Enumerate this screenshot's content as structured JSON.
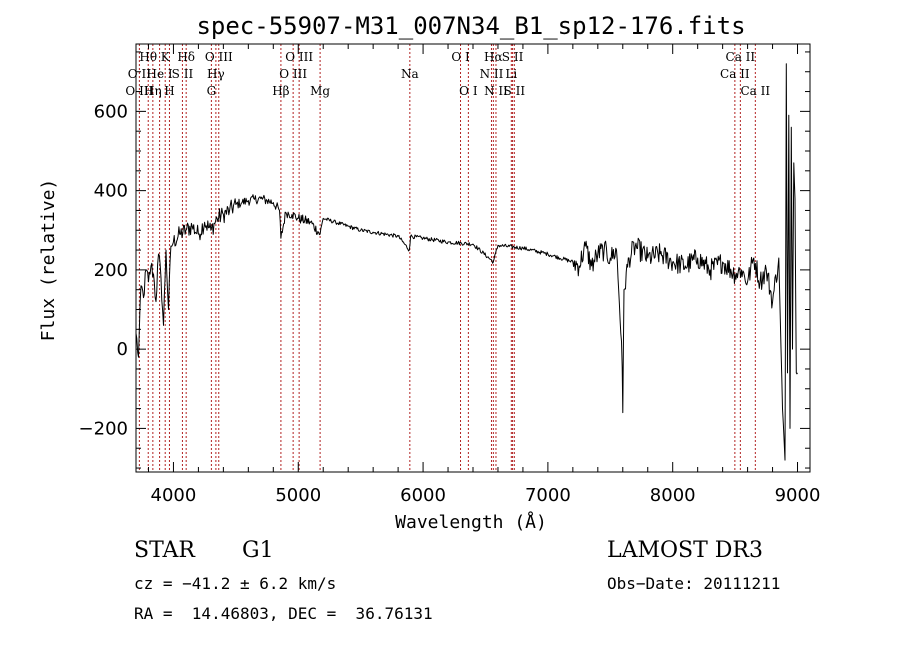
{
  "chart_data": {
    "type": "line",
    "title": "spec-55907-M31_007N34_B1_sp12-176.fits",
    "xlabel": "Wavelength (Å)",
    "ylabel": "Flux (relative)",
    "xlim": [
      3700,
      9100
    ],
    "ylim": [
      -310,
      770
    ],
    "xticks": [
      4000,
      5000,
      6000,
      7000,
      8000,
      9000
    ],
    "yticks": [
      -200,
      0,
      200,
      400,
      600
    ],
    "series": [
      {
        "name": "spectrum",
        "x": [
          3700,
          3720,
          3740,
          3760,
          3780,
          3800,
          3820,
          3840,
          3860,
          3880,
          3900,
          3920,
          3940,
          3960,
          3980,
          4000,
          4050,
          4100,
          4150,
          4200,
          4250,
          4300,
          4350,
          4400,
          4450,
          4500,
          4550,
          4600,
          4650,
          4700,
          4750,
          4800,
          4850,
          4861,
          4900,
          4950,
          5000,
          5100,
          5175,
          5200,
          5300,
          5400,
          5500,
          5600,
          5700,
          5800,
          5890,
          5900,
          6000,
          6200,
          6400,
          6563,
          6600,
          6800,
          7000,
          7200,
          7250,
          7300,
          7350,
          7400,
          7450,
          7500,
          7550,
          7590,
          7600,
          7610,
          7650,
          7700,
          7800,
          7900,
          8000,
          8100,
          8200,
          8300,
          8400,
          8500,
          8550,
          8600,
          8650,
          8700,
          8750,
          8800,
          8850,
          8880,
          8900,
          8910,
          8920,
          8930,
          8940,
          8950,
          8960,
          8970,
          8980,
          8990,
          9000
        ],
        "values": [
          40,
          -20,
          160,
          130,
          200,
          170,
          210,
          190,
          120,
          240,
          180,
          60,
          250,
          100,
          260,
          270,
          290,
          300,
          310,
          290,
          320,
          300,
          330,
          340,
          350,
          365,
          370,
          375,
          378,
          380,
          375,
          370,
          350,
          280,
          345,
          340,
          330,
          320,
          290,
          330,
          320,
          310,
          300,
          295,
          290,
          285,
          250,
          285,
          280,
          270,
          265,
          220,
          262,
          255,
          240,
          220,
          210,
          260,
          210,
          240,
          250,
          230,
          250,
          20,
          -160,
          150,
          230,
          260,
          230,
          240,
          220,
          210,
          230,
          200,
          220,
          190,
          200,
          170,
          230,
          170,
          200,
          120,
          230,
          -150,
          -280,
          720,
          -60,
          590,
          -200,
          560,
          0,
          470,
          380,
          -60,
          -60
        ]
      }
    ],
    "lines": [
      {
        "label": "O II",
        "wavelength": 3727,
        "row": 2
      },
      {
        "label": "O III",
        "wavelength": 3727,
        "row": 3
      },
      {
        "label": "Hθ",
        "wavelength": 3798,
        "row": 1
      },
      {
        "label": "Hη",
        "wavelength": 3835,
        "row": 3
      },
      {
        "label": "He I",
        "wavelength": 3889,
        "row": 2
      },
      {
        "label": "K",
        "wavelength": 3934,
        "row": 1
      },
      {
        "label": "H",
        "wavelength": 3968,
        "row": 3
      },
      {
        "label": "S II",
        "wavelength": 4072,
        "row": 2
      },
      {
        "label": "Hδ",
        "wavelength": 4102,
        "row": 1
      },
      {
        "label": "G",
        "wavelength": 4304,
        "row": 3
      },
      {
        "label": "Hγ",
        "wavelength": 4340,
        "row": 2
      },
      {
        "label": "O III",
        "wavelength": 4363,
        "row": 1
      },
      {
        "label": "Hβ",
        "wavelength": 4861,
        "row": 3
      },
      {
        "label": "O III",
        "wavelength": 4959,
        "row": 2
      },
      {
        "label": "O III",
        "wavelength": 5007,
        "row": 1
      },
      {
        "label": "Mg",
        "wavelength": 5175,
        "row": 3
      },
      {
        "label": "Na",
        "wavelength": 5894,
        "row": 2
      },
      {
        "label": "O I",
        "wavelength": 6300,
        "row": 1
      },
      {
        "label": "O I",
        "wavelength": 6363,
        "row": 3
      },
      {
        "label": "N II",
        "wavelength": 6548,
        "row": 2
      },
      {
        "label": "Hα",
        "wavelength": 6563,
        "row": 1
      },
      {
        "label": "N II",
        "wavelength": 6584,
        "row": 3
      },
      {
        "label": "S II",
        "wavelength": 6717,
        "row": 1
      },
      {
        "label": "Li",
        "wavelength": 6707,
        "row": 2
      },
      {
        "label": "S II",
        "wavelength": 6731,
        "row": 3
      },
      {
        "label": "Ca II",
        "wavelength": 8498,
        "row": 2
      },
      {
        "label": "Ca II",
        "wavelength": 8542,
        "row": 1
      },
      {
        "label": "Ca II",
        "wavelength": 8662,
        "row": 3
      }
    ],
    "colors": {
      "line_markers": "#b22222",
      "spectrum": "#000000",
      "axes": "#000000"
    }
  },
  "info": {
    "object_class": "STAR",
    "subclass": "G1",
    "survey": "LAMOST DR3",
    "velocity": "cz = −41.2 ± 6.2 km/s",
    "obs_date": "Obs−Date: 20111211",
    "coords": "RA =  14.46803, DEC =  36.76131"
  }
}
